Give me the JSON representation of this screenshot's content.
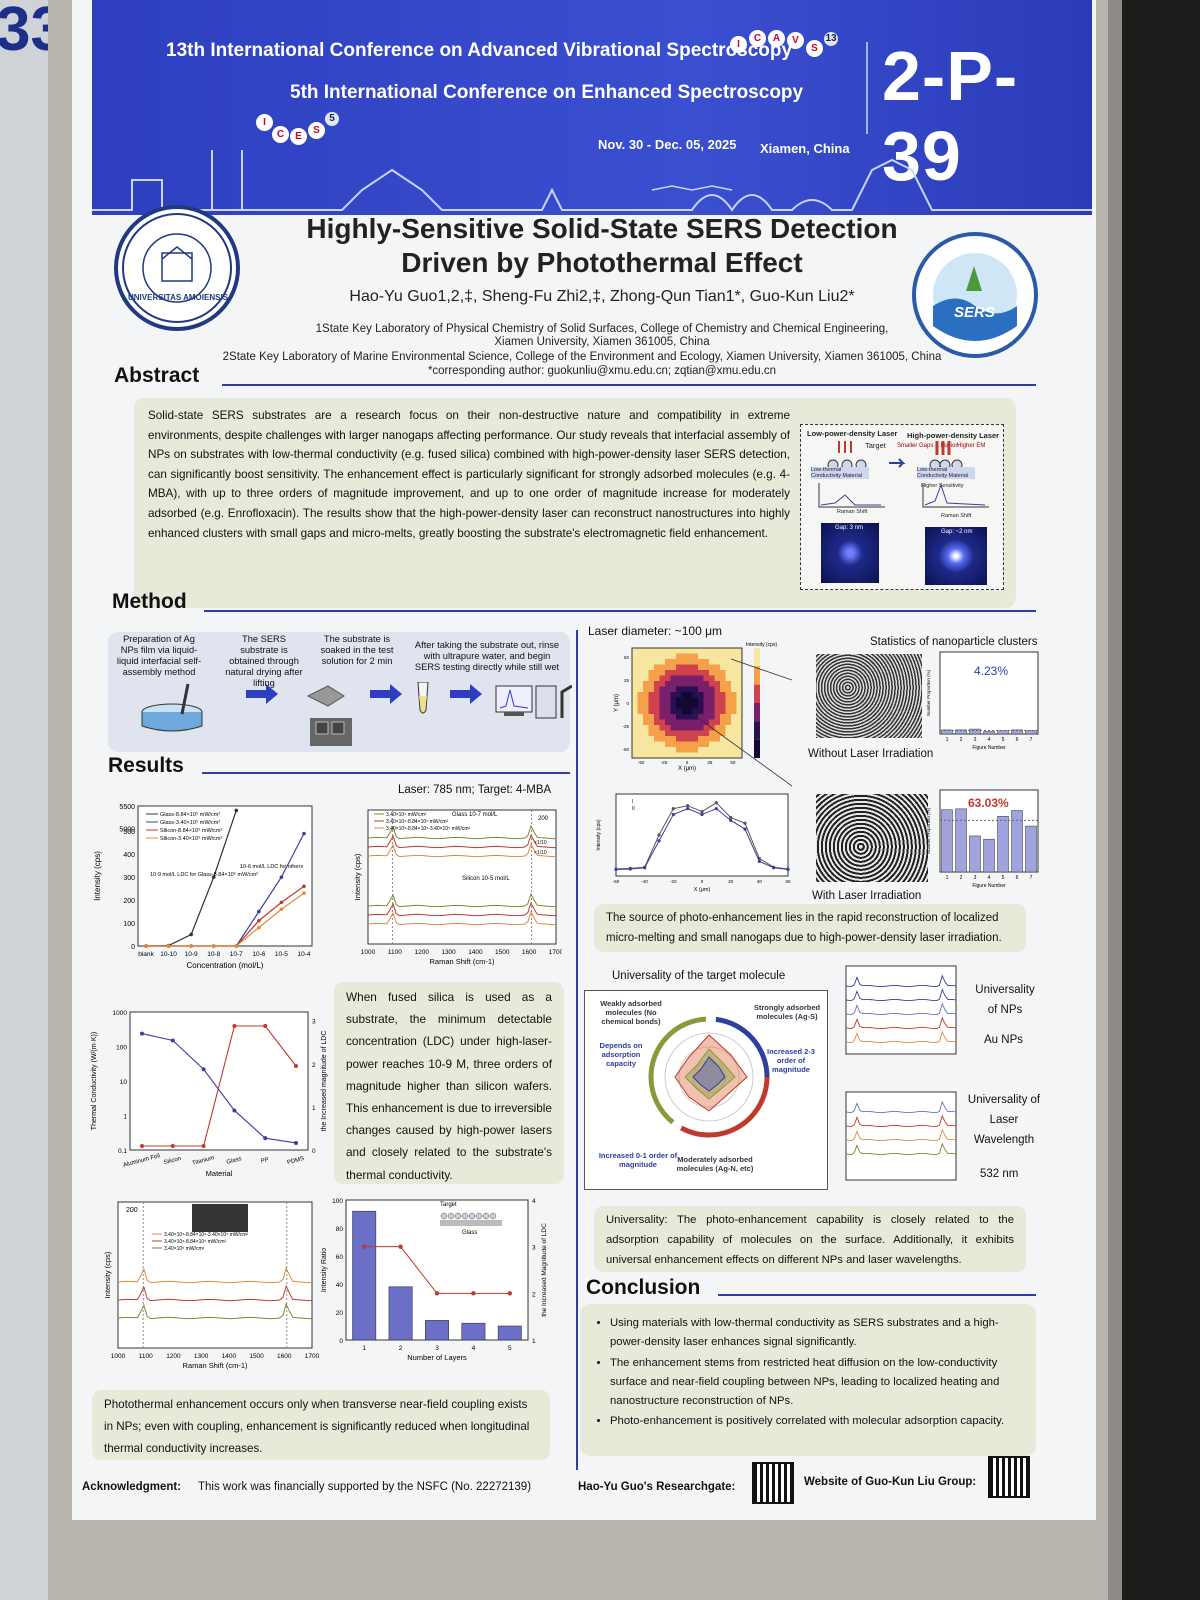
{
  "edge_number": "33",
  "banner": {
    "line1": "13th International Conference on Advanced Vibrational Spectroscopy",
    "line2": "5th International Conference on Enhanced Spectroscopy",
    "dates": "Nov. 30 - Dec. 05, 2025",
    "location": "Xiamen, China",
    "poster_code": "2-P-39",
    "icavs_letters": [
      "I",
      "C",
      "A",
      "V",
      "S"
    ],
    "icavs_num": "13",
    "ices_letters": [
      "I",
      "C",
      "E",
      "S"
    ],
    "ices_num": "5"
  },
  "logos": {
    "left": "UNIVERSITAS AMOIENSIS",
    "right": "SERS"
  },
  "title": {
    "line1": "Highly-Sensitive Solid-State SERS Detection",
    "line2": "Driven by Photothermal Effect"
  },
  "authors": "Hao-Yu Guo1,2,‡, Sheng-Fu Zhi2,‡, Zhong-Qun Tian1*, Guo-Kun Liu2*",
  "affiliations": {
    "a1": "1State Key Laboratory of Physical Chemistry of Solid Surfaces, College of Chemistry and Chemical Engineering,",
    "a1b": "Xiamen University, Xiamen 361005, China",
    "a2": "2State Key Laboratory of Marine Environmental Science, College of the Environment and Ecology, Xiamen University, Xiamen 361005, China",
    "corr": "*corresponding author: guokunliu@xmu.edu.cn; zqtian@xmu.edu.cn"
  },
  "abstract": {
    "heading": "Abstract",
    "text": "Solid-state SERS substrates are a research focus on their non-destructive nature and compatibility in extreme environments, despite challenges with larger nanogaps affecting performance. Our study reveals that interfacial assembly of NPs on substrates with low-thermal conductivity (e.g. fused silica) combined with high-power-density laser SERS detection, can significantly boost sensitivity. The enhancement effect is particularly significant for strongly adsorbed molecules (e.g. 4-MBA), with up to three orders of magnitude improvement, and up to one order of magnitude increase for moderately adsorbed (e.g. Enrofloxacin). The results show that the high-power-density laser can reconstruct nanostructures into highly enhanced clusters with small gaps and micro-melts, greatly boosting the substrate's electromagnetic field enhancement.",
    "fig": {
      "low": "Low-power-density Laser",
      "high": "High-power-density Laser",
      "target": "Target",
      "smaller_gaps": "Smaller Gaps & Fusion",
      "higher_em": "Higher EM",
      "material": "Low-thermal Conductivity Material",
      "raman": "Raman Shift",
      "intensity": "Intensity",
      "higher_sens": "Higher Sensitivity",
      "gap1": "Gap: 3 nm",
      "gap2": "Gap: ~2 nm"
    }
  },
  "method": {
    "heading": "Method",
    "steps": [
      "Preparation of Ag NPs film via liquid-liquid interfacial self-assembly method",
      "The SERS substrate is obtained through natural drying after lifting",
      "The substrate is soaked in the test solution for 2 min",
      "After taking the substrate out, rinse with ultrapure water, and begin SERS testing directly while still wet"
    ]
  },
  "results": {
    "heading": "Results",
    "laser_target": "Laser: 785 nm; Target: 4-MBA",
    "caption_silica": "When fused silica is used as a substrate, the minimum detectable concentration (LDC) under high-laser-power reaches 10-9 M, three orders of magnitude higher than silicon wafers. This enhancement is due to irreversible changes caused by high-power lasers and closely related to the substrate's thermal conductivity.",
    "caption_coupling": "Photothermal enhancement occurs only when transverse near-field coupling exists in NPs; even with coupling, enhancement is significantly reduced when longitudinal thermal conductivity increases.",
    "laser_diameter": "Laser diameter: ~100 μm",
    "stats_title": "Statistics of nanoparticle clusters",
    "without": "Without Laser Irradiation",
    "with": "With Laser Irradiation",
    "pct_without": "4.23%",
    "pct_with": "63.03%",
    "caption_source": "The source of photo-enhancement lies in the rapid reconstruction of localized micro-melting and small nanogaps due to high-power-density laser irradiation.",
    "universality_title": "Universality of the target molecule",
    "weak": "Weakly adsorbed molecules (No chemical bonds)",
    "depends": "Depends on adsorption capacity",
    "strong": "Strongly adsorbed molecules (Ag-S)",
    "increased23": "Increased 2-3 order of magnitude",
    "increased01": "Increased 0-1 order of magnitude",
    "moderate": "Moderately adsorbed molecules (Ag-N, etc)",
    "univ_nps": "Universality of NPs",
    "au_nps": "Au NPs",
    "univ_laser": "Universality of Laser Wavelength",
    "nm532": "532 nm",
    "caption_univ": "Universality: The photo-enhancement capability is closely related to the adsorption capability of molecules on the surface. Additionally, it exhibits universal enhancement effects on different NPs and laser wavelengths."
  },
  "conclusion": {
    "heading": "Conclusion",
    "items": [
      "Using materials with low-thermal conductivity as SERS substrates and a high-power-density laser enhances signal significantly.",
      "The enhancement stems from restricted heat diffusion on the low-conductivity surface and near-field coupling between NPs, leading to localized heating and nanostructure reconstruction of NPs.",
      "Photo-enhancement is positively correlated with molecular adsorption capacity."
    ]
  },
  "footer": {
    "ack_label": "Acknowledgment:",
    "ack_text": "This work was financially supported by the NSFC (No. 22272139)",
    "rg_label": "Hao-Yu Guo's Researchgate:",
    "web_label": "Website of Guo-Kun Liu Group:"
  },
  "chart_data": [
    {
      "type": "line",
      "title": "",
      "xlabel": "Concentration (mol/L)",
      "ylabel": "Intensity (cps)",
      "categories": [
        "blank",
        "10-10",
        "10-9",
        "10-8",
        "10-7",
        "10-6",
        "10-5",
        "10-4"
      ],
      "y_ticks": [
        "0",
        "100",
        "200",
        "300",
        "400",
        "500",
        "5000",
        "5500"
      ],
      "series": [
        {
          "name": "Glass-8.84×10⁵ mW/cm²",
          "color": "#333333",
          "values": [
            0,
            2,
            50,
            300,
            5400,
            null,
            null,
            null
          ]
        },
        {
          "name": "Glass-3.40×10⁵ mW/cm²",
          "color": "#3a3fa0",
          "values": [
            0,
            0,
            0,
            0,
            0,
            150,
            300,
            490
          ]
        },
        {
          "name": "Silicon-8.84×10⁵ mW/cm²",
          "color": "#c0392b",
          "values": [
            0,
            0,
            0,
            0,
            0,
            110,
            190,
            260
          ]
        },
        {
          "name": "Silicon-3.40×10⁵ mW/cm²",
          "color": "#e08a3c",
          "values": [
            0,
            0,
            0,
            0,
            0,
            80,
            160,
            230
          ]
        }
      ],
      "annotations": [
        "10-9 mol/L LDC for Glass-8.84×10⁵ mW/cm²",
        "10-6 mol/L LDC for others"
      ]
    },
    {
      "type": "line",
      "title": "",
      "xlabel": "Raman Shift (cm-1)",
      "ylabel": "Intensity (cps)",
      "x_ticks": [
        "1000",
        "1100",
        "1200",
        "1300",
        "1400",
        "1500",
        "1600",
        "1700"
      ],
      "labels": [
        "Glass 10-7 mol/L",
        "Silicon 10-5 mol/L",
        "200",
        "×1/10",
        "×1/10"
      ],
      "series": [
        {
          "name": "3.40×10⁵ mW/cm²",
          "color": "#7a8a2a"
        },
        {
          "name": "3.40×10⁵-8.84×10⁵ mW/cm²",
          "color": "#c0392b"
        },
        {
          "name": "3.40×10⁵-8.84×10⁵-3.40×10⁵ mW/cm²",
          "color": "#e08a3c"
        }
      ]
    },
    {
      "type": "line",
      "title": "",
      "xlabel": "Material",
      "ylabel": "Thermal Conductivity (W/(m·K))",
      "y2label": "the Increased magnitude of LDC",
      "categories": [
        "Aluminum Foil",
        "Silicon",
        "Titanium",
        "Glass",
        "PP",
        "PDMS"
      ],
      "series": [
        {
          "name": "Thermal Conductivity",
          "color": "#3a3fa0",
          "values": [
            237,
            149,
            21.9,
            1.4,
            0.22,
            0.16
          ]
        },
        {
          "name": "Increased magnitude of LDC",
          "color": "#c0392b",
          "values": [
            0,
            0,
            0,
            3,
            3,
            2
          ]
        }
      ]
    },
    {
      "type": "line",
      "title": "",
      "xlabel": "Raman Shift (cm-1)",
      "ylabel": "Intensity (cps)",
      "x_ticks": [
        "1000",
        "1100",
        "1200",
        "1300",
        "1400",
        "1500",
        "1600",
        "1700"
      ],
      "labels": [
        "200"
      ],
      "series": [
        {
          "name": "3.40×10⁵-8.84×10⁵-3.40×10⁵ mW/cm²",
          "color": "#e08a3c"
        },
        {
          "name": "3.40×10⁵-8.84×10⁵ mW/cm²",
          "color": "#c0392b"
        },
        {
          "name": "3.40×10⁵ mW/cm²",
          "color": "#7a8a2a"
        }
      ]
    },
    {
      "type": "bar",
      "title": "",
      "xlabel": "Number of Layers",
      "ylabel": "Intensity Ratio",
      "y2label": "the Increased Magnitude of LDC",
      "categories": [
        "1",
        "2",
        "3",
        "4",
        "5"
      ],
      "values": [
        92,
        38,
        14,
        12,
        10
      ],
      "line_values": [
        3,
        3,
        2,
        2,
        2
      ],
      "ylim": [
        0,
        100
      ],
      "y2lim": [
        1,
        4
      ],
      "labels": [
        "Target",
        "Glass"
      ]
    },
    {
      "type": "bar",
      "title": "",
      "xlabel": "Figure Number",
      "ylabel": "Number Proportion (%)",
      "categories": [
        "1",
        "2",
        "3",
        "4",
        "5",
        "6",
        "7"
      ],
      "values": [
        5,
        5,
        6,
        3,
        4,
        5,
        4
      ],
      "ylim": [
        0,
        100
      ]
    },
    {
      "type": "bar",
      "title": "",
      "xlabel": "Figure Number",
      "ylabel": "Number Proportion (%)",
      "categories": [
        "1",
        "2",
        "3",
        "4",
        "5",
        "6",
        "7"
      ],
      "values": [
        76,
        77,
        44,
        40,
        68,
        75,
        56
      ],
      "ylim": [
        0,
        100
      ]
    },
    {
      "type": "line",
      "title": "",
      "xlabel": "X (μm)",
      "ylabel": "Intensity (cps)",
      "x": [
        -60,
        -50,
        -40,
        -30,
        -20,
        -10,
        0,
        10,
        20,
        30,
        40,
        50,
        60
      ],
      "series": [
        {
          "name": "I",
          "color": "#555555",
          "values": [
            120,
            130,
            150,
            700,
            1150,
            1200,
            1100,
            1250,
            1000,
            900,
            300,
            150,
            120
          ]
        },
        {
          "name": "II",
          "color": "#3a3fa0",
          "values": [
            110,
            120,
            140,
            600,
            1050,
            1150,
            1050,
            1150,
            950,
            800,
            250,
            140,
            110
          ]
        }
      ]
    },
    {
      "type": "heatmap",
      "title": "",
      "xlabel": "X (μm)",
      "ylabel": "Y (μm)",
      "colorbar_label": "Intensity (cps)",
      "xlim": [
        -60,
        60
      ],
      "ylim": [
        -60,
        60
      ]
    }
  ]
}
